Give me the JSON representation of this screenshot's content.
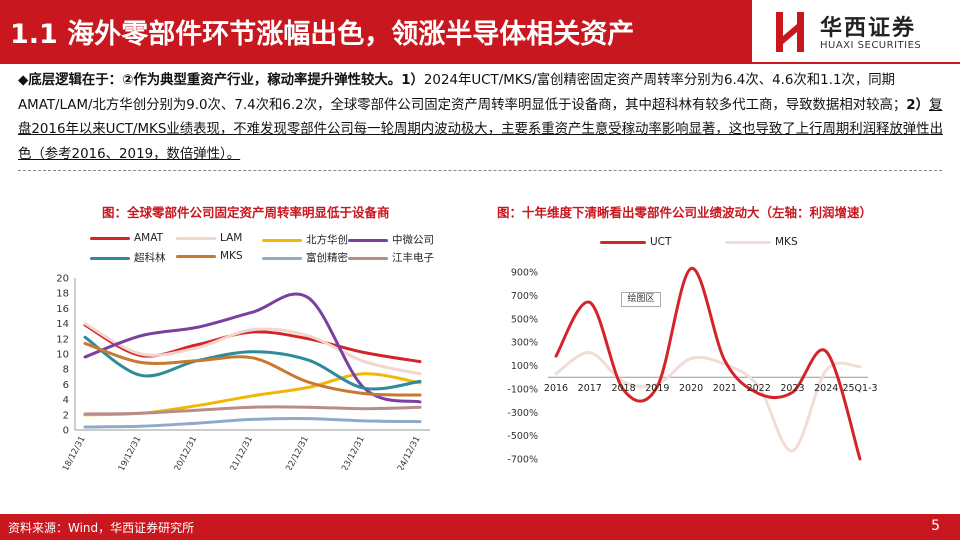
{
  "header": {
    "title": "1.1 海外零部件环节涨幅出色，领涨半导体相关资产",
    "logo_cn": "华西证券",
    "logo_en": "HUAXI SECURITIES"
  },
  "intro": {
    "p1": "◆底层逻辑在于：②作为典型重资产行业，稼动率提升弹性较大。",
    "p2": "1）",
    "p3": "2024年UCT/MKS/富创精密固定资产周转率分别为6.4次、4.6次和1.1次，同期AMAT/LAM/北方华创分别为9.0次、7.4次和6.2次，全球零部件公司固定资产周转率明显低于设备商，其中超科林有较多代工商，导致数据相对较高；",
    "p4": "2）",
    "p5": "复盘2016年以来UCT/MKS业绩表现，不难发现零部件公司每一轮周期内波动极大，主要系重资产生意受稼动率影响显著，这也导致了上行周期利润释放弹性出色（参考2016、2019，数倍弹性）。"
  },
  "chart_data": [
    {
      "type": "line",
      "title": "图：全球零部件公司固定资产周转率明显低于设备商",
      "categories": [
        "2018/12/31",
        "2019/12/31",
        "2020/12/31",
        "2021/12/31",
        "2022/12/31",
        "2023/12/31",
        "2024/12/31"
      ],
      "ylim": [
        0,
        20
      ],
      "yticks": [
        0,
        2,
        4,
        6,
        8,
        10,
        12,
        14,
        16,
        18,
        20
      ],
      "series": [
        {
          "name": "AMAT",
          "color": "#d4242a",
          "values": [
            13.8,
            9.8,
            11.2,
            12.9,
            12.0,
            10.2,
            9.0
          ]
        },
        {
          "name": "LAM",
          "color": "#f2d5cc",
          "values": [
            14.0,
            10.0,
            10.8,
            13.2,
            12.4,
            9.0,
            7.4
          ]
        },
        {
          "name": "北方华创",
          "color": "#f2b705",
          "values": [
            2.0,
            2.2,
            3.2,
            4.5,
            5.6,
            7.4,
            6.2
          ]
        },
        {
          "name": "中微公司",
          "color": "#7a3fa0",
          "values": [
            9.6,
            12.4,
            13.5,
            15.5,
            17.4,
            5.5,
            3.7
          ]
        },
        {
          "name": "超科林",
          "color": "#2e8b9a",
          "values": [
            12.2,
            7.2,
            9.1,
            10.3,
            9.2,
            5.5,
            6.4
          ]
        },
        {
          "name": "MKS",
          "color": "#c8782f",
          "values": [
            11.4,
            8.9,
            9.1,
            9.5,
            6.3,
            4.8,
            4.6
          ]
        },
        {
          "name": "富创精密",
          "color": "#8fa9c9",
          "values": [
            0.4,
            0.5,
            0.9,
            1.4,
            1.5,
            1.2,
            1.1
          ]
        },
        {
          "name": "江丰电子",
          "color": "#b98c8c",
          "values": [
            2.1,
            2.2,
            2.6,
            3.0,
            3.0,
            2.8,
            3.0
          ]
        }
      ]
    },
    {
      "type": "line",
      "title": "图：十年维度下清晰看出零部件公司业绩波动大（左轴：利润增速）",
      "categories": [
        "2016",
        "2017",
        "2018",
        "2019",
        "2020",
        "2021",
        "2022",
        "2023",
        "2024",
        "25Q1-3"
      ],
      "ylim": [
        -700,
        900
      ],
      "yticks": [
        -700,
        -500,
        -300,
        -100,
        100,
        300,
        500,
        700,
        900
      ],
      "ytick_labels": [
        "-700%",
        "-500%",
        "-300%",
        "-100%",
        "100%",
        "300%",
        "500%",
        "700%",
        "900%"
      ],
      "annotation": "绘图区",
      "series": [
        {
          "name": "UCT",
          "color": "#d4242a",
          "values": [
            180,
            640,
            -110,
            -80,
            930,
            140,
            -140,
            -130,
            220,
            -700
          ]
        },
        {
          "name": "MKS",
          "color": "#f0ddd6",
          "values": [
            30,
            210,
            -40,
            -60,
            160,
            110,
            -80,
            -630,
            60,
            90
          ]
        }
      ]
    }
  ],
  "footer": {
    "source": "资料来源：Wind，华西证券研究所",
    "page": "5"
  }
}
